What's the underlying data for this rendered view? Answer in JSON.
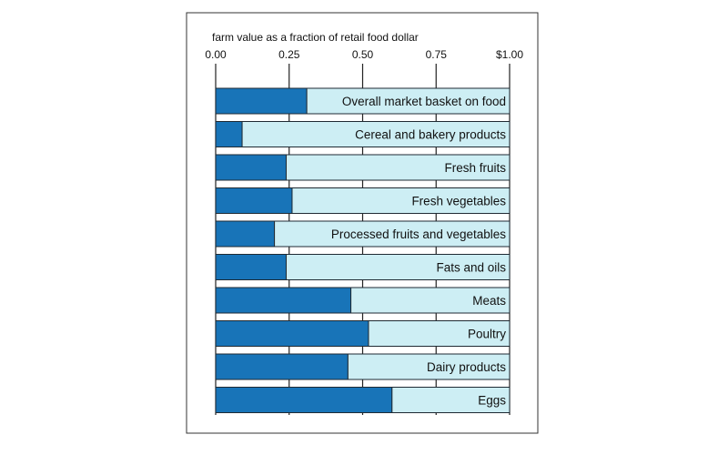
{
  "chart_data": {
    "type": "bar",
    "orientation": "horizontal",
    "stacked": true,
    "title": "farm value as a fraction of retail food dollar",
    "xlim": [
      0,
      1
    ],
    "tick_labels": [
      "0.00",
      "0.25",
      "0.50",
      "0.75",
      "$1.00"
    ],
    "tick_values": [
      0,
      0.25,
      0.5,
      0.75,
      1.0
    ],
    "categories": [
      "Overall market basket on food",
      "Cereal and bakery products",
      "Fresh fruits",
      "Fresh vegetables",
      "Processed fruits and vegetables",
      "Fats and oils",
      "Meats",
      "Poultry",
      "Dairy products",
      "Eggs"
    ],
    "series": [
      {
        "values": [
          0.31,
          0.09,
          0.24,
          0.26,
          0.2,
          0.24,
          0.46,
          0.52,
          0.45,
          0.6
        ]
      },
      {
        "values": [
          0.69,
          0.91,
          0.76,
          0.74,
          0.8,
          0.76,
          0.54,
          0.48,
          0.55,
          0.4
        ]
      }
    ],
    "colors": {
      "farm": "#1874b8",
      "retail": "#cdeef4",
      "outline": "#1f2a33"
    },
    "grid": true
  }
}
